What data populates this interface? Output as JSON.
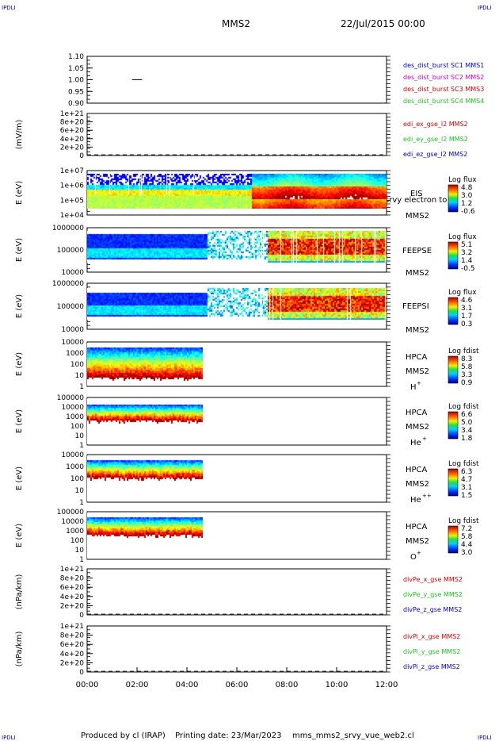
{
  "corner_label": "IPDLI",
  "header": {
    "spacecraft": "MMS2",
    "date": "22/Jul/2015 00:00"
  },
  "footer": {
    "produced_by": "Produced by cl (IRAP)",
    "printing_date": "Printing date: 23/Mar/2023",
    "filename": "mms_mms2_srvy_vue_web2.cl"
  },
  "time_axis": {
    "ticks": [
      "00:00",
      "02:00",
      "04:00",
      "06:00",
      "08:00",
      "10:00",
      "12:00"
    ]
  },
  "colors": {
    "red": "#d00000",
    "magenta": "#d000d0",
    "green": "#20c020",
    "blue": "#0000c0",
    "black": "#000000"
  },
  "chart_data": [
    {
      "type": "line",
      "id": "burst",
      "ylim": [
        0.9,
        1.1
      ],
      "y_ticks": [
        "1.10",
        "1.05",
        "1.00",
        "0.95",
        "0.90"
      ],
      "legend": [
        {
          "label": "des_dist_burst SC1 MMS1",
          "color": "blue"
        },
        {
          "label": "des_dist_burst SC2 MMS2",
          "color": "magenta"
        },
        {
          "label": "des_dist_burst SC3 MMS3",
          "color": "red"
        },
        {
          "label": "des_dist_burst SC4 MMS4",
          "color": "green"
        }
      ],
      "series": [
        {
          "x_hours": [
            1.8,
            2.2
          ],
          "values": [
            1.0,
            1.0
          ]
        }
      ]
    },
    {
      "type": "line",
      "id": "edi",
      "ylabel": "(mV/m)",
      "y_ticks": [
        "1e+21",
        "8e+20",
        "6e+20",
        "4e+20",
        "2e+20",
        "0"
      ],
      "zero_line": true,
      "legend": [
        {
          "label": "edi_ex_gse_l2 MMS2",
          "color": "red"
        },
        {
          "label": "edi_ey_gse_l2 MMS2",
          "color": "green"
        },
        {
          "label": "edi_ez_gse_l2 MMS2",
          "color": "blue"
        }
      ]
    },
    {
      "type": "heatmap",
      "id": "eis",
      "ylabel": "E (eV)",
      "y_ticks": [
        "1e+07",
        "1e+06",
        "1e+05",
        "1e+04"
      ],
      "instrument": [
        "EIS",
        "MMS2"
      ],
      "overlay_text": "srvy electron to",
      "colorbar": {
        "title": "Log flux",
        "ticks": [
          "4.8",
          "3.0",
          "1.2",
          "-0.6"
        ]
      }
    },
    {
      "type": "heatmap",
      "id": "feepse",
      "ylabel": "E (eV)",
      "y_ticks": [
        "1000000",
        "100000",
        "10000"
      ],
      "instrument": [
        "FEEPSE",
        "MMS2"
      ],
      "colorbar": {
        "title": "Log flux",
        "ticks": [
          "5.1",
          "3.2",
          "1.4",
          "-0.5"
        ]
      }
    },
    {
      "type": "heatmap",
      "id": "feepsi",
      "ylabel": "E (eV)",
      "y_ticks": [
        "1000000",
        "100000",
        "10000"
      ],
      "instrument": [
        "FEEPSI",
        "MMS2"
      ],
      "colorbar": {
        "title": "Log flux",
        "ticks": [
          "4.6",
          "3.1",
          "1.7",
          "0.3"
        ]
      }
    },
    {
      "type": "heatmap",
      "id": "hpca_h",
      "ylabel": "E (eV)",
      "y_ticks": [
        "10000",
        "1000",
        "100",
        "10",
        "1"
      ],
      "instrument": [
        "HPCA",
        "MMS2"
      ],
      "species": "H",
      "charge": "+",
      "data_end_hour": 4.65,
      "colorbar": {
        "title": "Log fdist",
        "ticks": [
          "8.3",
          "5.8",
          "3.3",
          "0.9"
        ]
      }
    },
    {
      "type": "heatmap",
      "id": "hpca_he",
      "ylabel": "E (eV)",
      "y_ticks": [
        "100000",
        "10000",
        "1000",
        "100",
        "10",
        "1"
      ],
      "instrument": [
        "HPCA",
        "MMS2"
      ],
      "species": "He",
      "charge": "+",
      "data_end_hour": 4.65,
      "colorbar": {
        "title": "Log fdist",
        "ticks": [
          "6.6",
          "5.0",
          "3.4",
          "1.8"
        ]
      }
    },
    {
      "type": "heatmap",
      "id": "hpca_hepp",
      "ylabel": "E (eV)",
      "y_ticks": [
        "10000",
        "1000",
        "100",
        "10",
        "1"
      ],
      "instrument": [
        "HPCA",
        "MMS2"
      ],
      "species": "He",
      "charge": "++",
      "data_end_hour": 4.65,
      "colorbar": {
        "title": "Log fdist",
        "ticks": [
          "6.3",
          "4.7",
          "3.1",
          "1.5"
        ]
      }
    },
    {
      "type": "heatmap",
      "id": "hpca_o",
      "ylabel": "E (eV)",
      "y_ticks": [
        "100000",
        "10000",
        "1000",
        "100",
        "10",
        "1"
      ],
      "instrument": [
        "HPCA",
        "MMS2"
      ],
      "species": "O",
      "charge": "+",
      "data_end_hour": 4.65,
      "colorbar": {
        "title": "Log fdist",
        "ticks": [
          "7.2",
          "5.8",
          "4.4",
          "3.0"
        ]
      }
    },
    {
      "type": "line",
      "id": "divpe",
      "ylabel": "(nPa/km)",
      "y_ticks": [
        "1e+21",
        "8e+20",
        "6e+20",
        "4e+20",
        "2e+20",
        "0"
      ],
      "zero_line": true,
      "legend": [
        {
          "label": "divPe_x_gse MMS2",
          "color": "red"
        },
        {
          "label": "divPe_y_gse MMS2",
          "color": "green"
        },
        {
          "label": "divPe_z_gse MMS2",
          "color": "blue"
        }
      ]
    },
    {
      "type": "line",
      "id": "divpi",
      "ylabel": "(nPa/km)",
      "y_ticks": [
        "1e+21",
        "8e+20",
        "6e+20",
        "4e+20",
        "2e+20",
        "0"
      ],
      "zero_line": true,
      "legend": [
        {
          "label": "divPi_x_gse MMS2",
          "color": "red"
        },
        {
          "label": "divPi_y_gse MMS2",
          "color": "green"
        },
        {
          "label": "divPi_z_gse MMS2",
          "color": "blue"
        }
      ]
    }
  ]
}
